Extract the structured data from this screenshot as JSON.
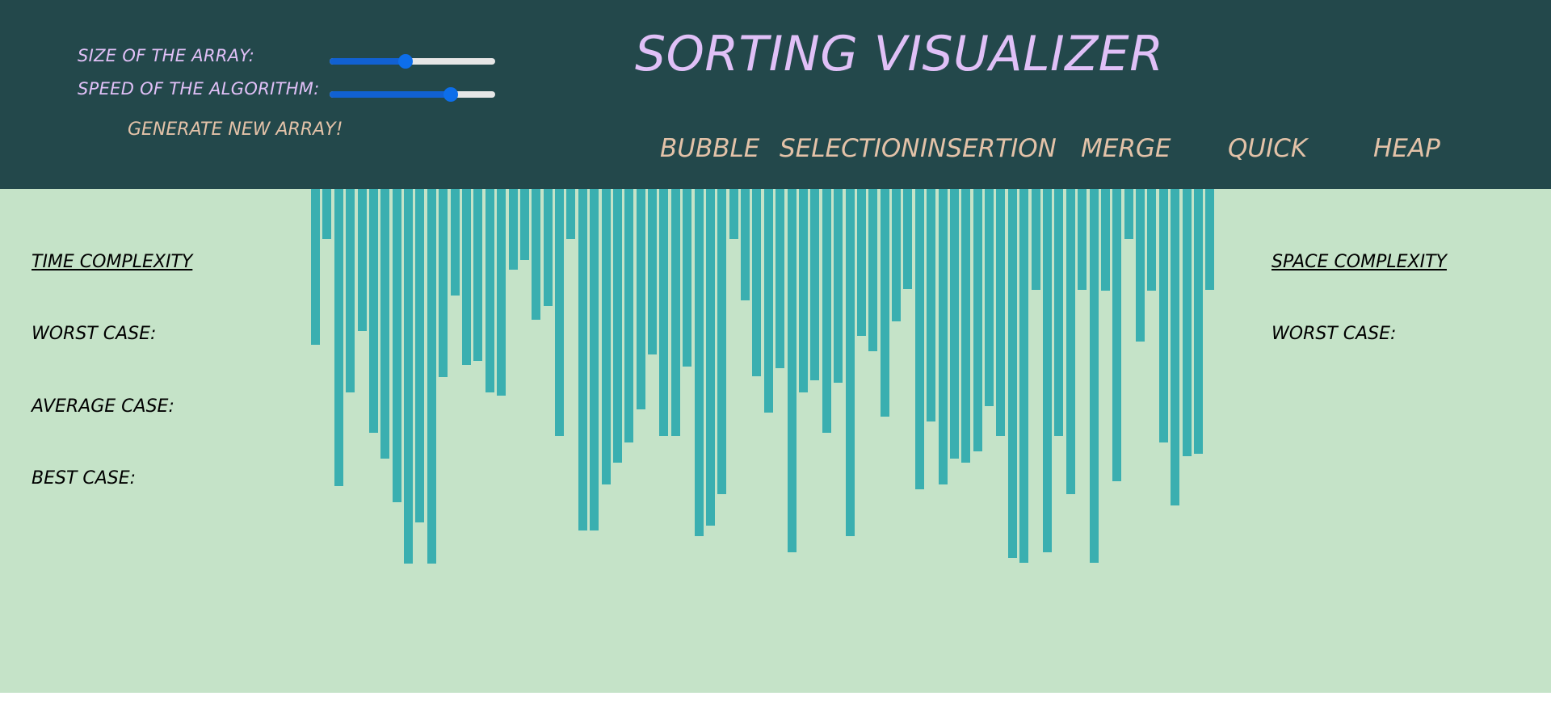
{
  "controls": {
    "size_label": "SIZE OF THE ARRAY:",
    "speed_label": "SPEED OF THE ALGORITHM:",
    "size_slider_value": 0.46,
    "speed_slider_value": 0.73,
    "generate_label": "GENERATE NEW ARRAY!"
  },
  "header": {
    "title": "SORTING VISUALIZER",
    "algorithms": [
      "BUBBLE",
      "SELECTION",
      "INSERTION",
      "MERGE",
      "QUICK",
      "HEAP"
    ]
  },
  "time_complexity": {
    "heading": "TIME COMPLEXITY",
    "worst": "WORST CASE:",
    "average": "AVERAGE CASE:",
    "best": "BEST CASE:"
  },
  "space_complexity": {
    "heading": "SPACE COMPLEXITY",
    "worst": "WORST CASE:"
  },
  "colors": {
    "header_bg": "#23484b",
    "main_bg": "#c5e3c8",
    "bar": "#3aafb0",
    "title": "#e0c0f7",
    "button_text": "#e3c2a8",
    "slider_fill": "#1161d2"
  },
  "array": {
    "values": [
      193,
      62,
      368,
      252,
      176,
      302,
      334,
      388,
      464,
      413,
      464,
      233,
      132,
      218,
      213,
      252,
      256,
      100,
      88,
      162,
      145,
      306,
      62,
      423,
      423,
      366,
      339,
      314,
      273,
      205,
      306,
      306,
      220,
      430,
      417,
      378,
      62,
      138,
      232,
      277,
      222,
      450,
      252,
      237,
      302,
      240,
      430,
      182,
      201,
      282,
      164,
      124,
      372,
      288,
      366,
      334,
      339,
      325,
      269,
      306,
      457,
      463,
      125,
      450,
      306,
      378,
      125,
      463,
      126,
      362,
      62,
      189,
      126,
      314,
      392,
      331,
      328,
      125
    ]
  }
}
